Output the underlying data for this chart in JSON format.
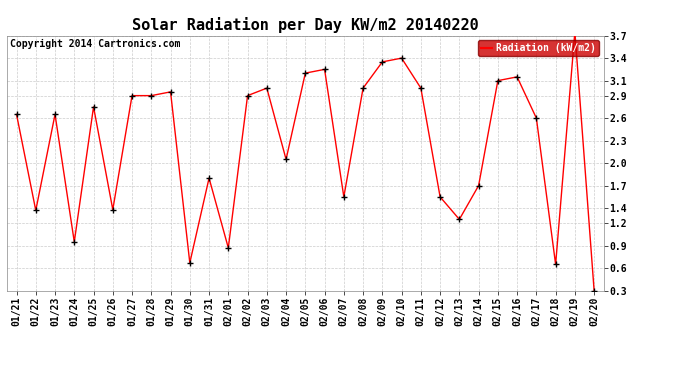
{
  "title": "Solar Radiation per Day KW/m2 20140220",
  "copyright": "Copyright 2014 Cartronics.com",
  "legend_label": "Radiation (kW/m2)",
  "dates": [
    "01/21",
    "01/22",
    "01/23",
    "01/24",
    "01/25",
    "01/26",
    "01/27",
    "01/28",
    "01/29",
    "01/30",
    "01/31",
    "02/01",
    "02/02",
    "02/03",
    "02/04",
    "02/05",
    "02/06",
    "02/07",
    "02/08",
    "02/09",
    "02/10",
    "02/11",
    "02/12",
    "02/13",
    "02/14",
    "02/15",
    "02/16",
    "02/17",
    "02/18",
    "02/19",
    "02/20"
  ],
  "values": [
    2.65,
    1.37,
    2.65,
    0.95,
    2.75,
    1.38,
    2.9,
    2.9,
    2.95,
    0.67,
    1.8,
    0.87,
    2.9,
    3.0,
    2.05,
    3.2,
    3.25,
    1.55,
    3.0,
    3.35,
    3.4,
    3.0,
    1.55,
    1.25,
    1.7,
    3.1,
    3.15,
    2.6,
    0.65,
    3.75,
    0.3
  ],
  "ylim": [
    0.3,
    3.7
  ],
  "yticks": [
    0.3,
    0.6,
    0.9,
    1.2,
    1.4,
    1.7,
    2.0,
    2.3,
    2.6,
    2.9,
    3.1,
    3.4,
    3.7
  ],
  "ytick_labels": [
    "0.3",
    "0.6",
    "0.9",
    "1.2",
    "1.4",
    "1.7",
    "2.0",
    "2.3",
    "2.6",
    "2.9",
    "3.1",
    "3.4",
    "3.7"
  ],
  "line_color": "#ff0000",
  "marker_color": "#000000",
  "bg_color": "#ffffff",
  "grid_color": "#cccccc",
  "legend_bg": "#cc0000",
  "legend_text_color": "#ffffff",
  "title_fontsize": 11,
  "tick_fontsize": 7,
  "copyright_fontsize": 7
}
